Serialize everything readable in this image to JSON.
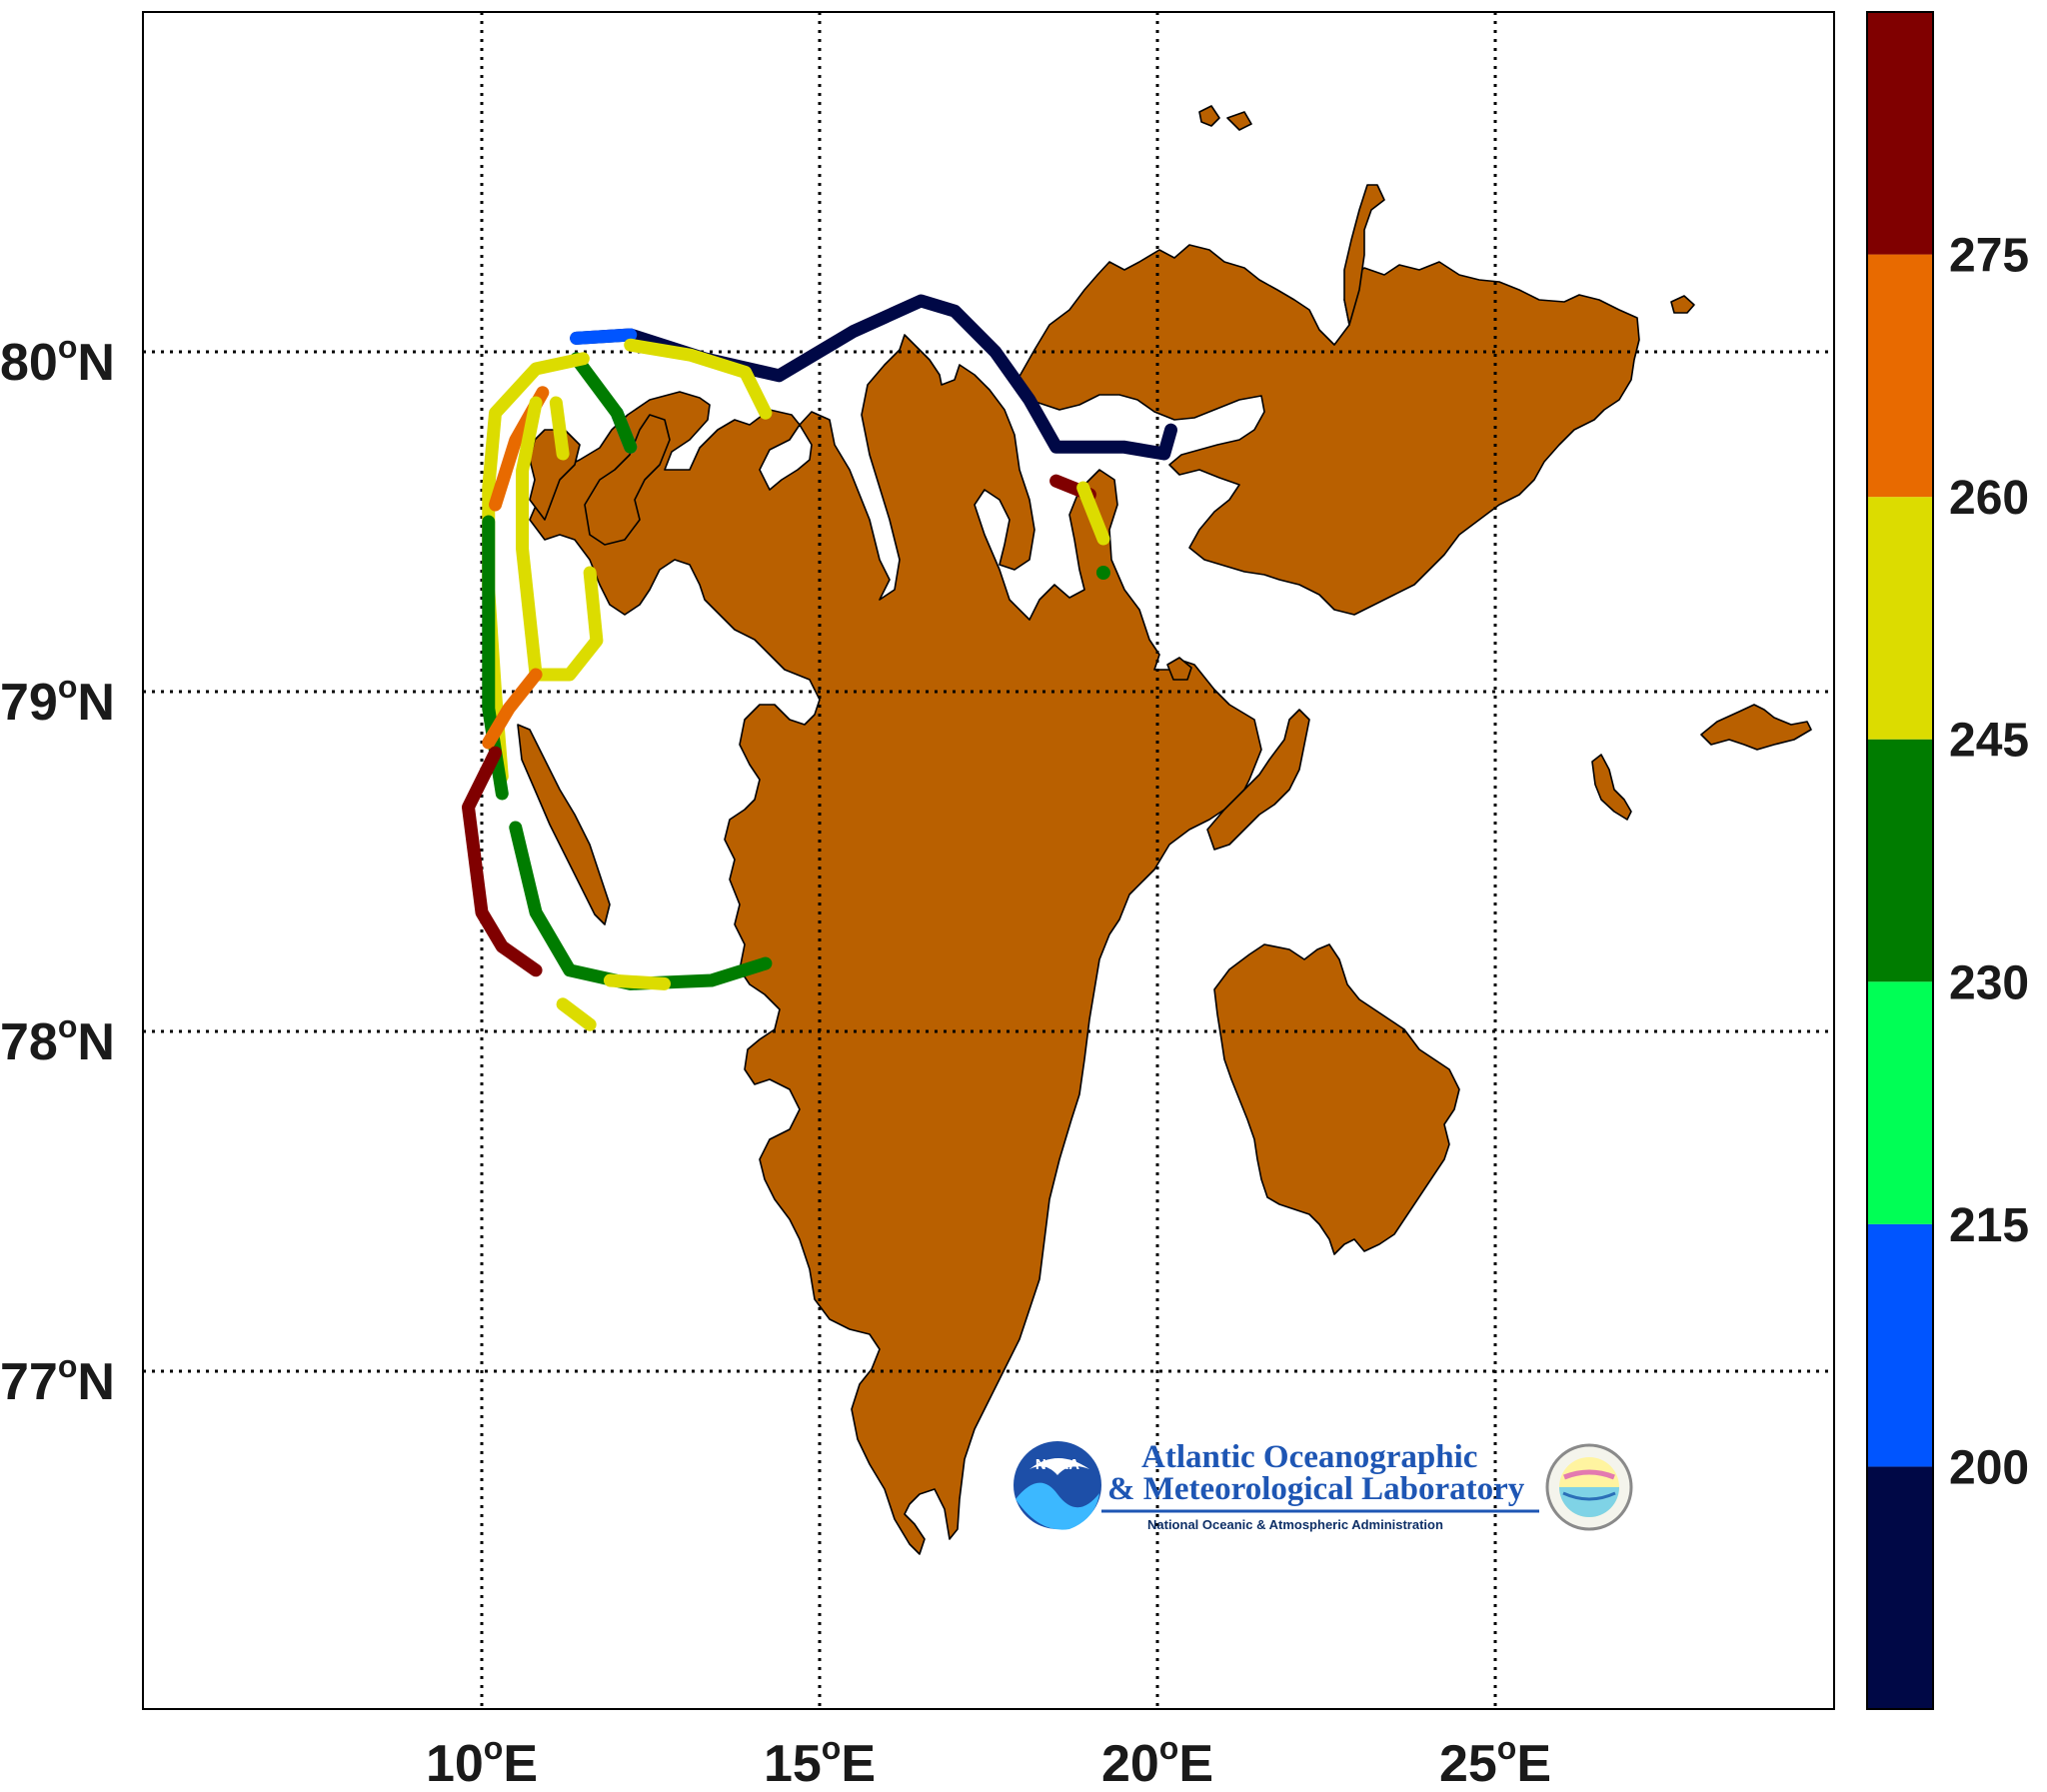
{
  "map": {
    "region": "Svalbard",
    "land_color": "#b96000",
    "ocean_color": "#ffffff",
    "grid": true,
    "lon_range": [
      5,
      30
    ],
    "lat_range": [
      76,
      81
    ]
  },
  "axes": {
    "lat_labels": [
      {
        "deg": "80",
        "sup": "o",
        "hemi": "N"
      },
      {
        "deg": "79",
        "sup": "o",
        "hemi": "N"
      },
      {
        "deg": "78",
        "sup": "o",
        "hemi": "N"
      },
      {
        "deg": "77",
        "sup": "o",
        "hemi": "N"
      }
    ],
    "lon_labels": [
      {
        "deg": "10",
        "sup": "o",
        "hemi": "E"
      },
      {
        "deg": "15",
        "sup": "o",
        "hemi": "E"
      },
      {
        "deg": "20",
        "sup": "o",
        "hemi": "E"
      },
      {
        "deg": "25",
        "sup": "o",
        "hemi": "E"
      }
    ]
  },
  "colorbar": {
    "min": 185,
    "max": 290,
    "labels": [
      "275",
      "260",
      "245",
      "230",
      "215",
      "200"
    ],
    "label_values": [
      275,
      260,
      245,
      230,
      215,
      200
    ],
    "bands": [
      {
        "from": 185,
        "to": 200,
        "color": "#000846"
      },
      {
        "from": 200,
        "to": 215,
        "color": "#0055ff"
      },
      {
        "from": 215,
        "to": 230,
        "color": "#00ff55"
      },
      {
        "from": 230,
        "to": 245,
        "color": "#007c00"
      },
      {
        "from": 245,
        "to": 260,
        "color": "#dcdc00"
      },
      {
        "from": 260,
        "to": 275,
        "color": "#e86a00"
      },
      {
        "from": 275,
        "to": 290,
        "color": "#800000"
      }
    ]
  },
  "logo": {
    "noaa_badge": "NOAA",
    "title_line1": "Atlantic Oceanographic",
    "title_line2": "& Meteorological Laboratory",
    "subtitle": "National Oceanic & Atmospheric Administration"
  },
  "chart_data": {
    "type": "scatter",
    "tracks": [
      {
        "v": 195,
        "points": [
          [
            11.4,
            80.04
          ],
          [
            12.2,
            80.05
          ],
          [
            13.3,
            79.98
          ],
          [
            14.4,
            79.93
          ],
          [
            15.5,
            80.06
          ],
          [
            16.5,
            80.15
          ],
          [
            17.0,
            80.12
          ],
          [
            17.6,
            80.0
          ],
          [
            18.1,
            79.86
          ],
          [
            18.5,
            79.72
          ],
          [
            19.5,
            79.72
          ],
          [
            20.1,
            79.7
          ],
          [
            20.2,
            79.77
          ]
        ]
      },
      {
        "v": 210,
        "points": [
          [
            11.4,
            80.04
          ],
          [
            12.2,
            80.05
          ]
        ]
      },
      {
        "v": 212,
        "points": [
          [
            12.0,
            79.82
          ],
          [
            12.2,
            79.72
          ]
        ]
      },
      {
        "v": 238,
        "points": [
          [
            11.4,
            79.98
          ],
          [
            12.0,
            79.82
          ],
          [
            12.2,
            79.72
          ]
        ]
      },
      {
        "v": 252,
        "points": [
          [
            12.2,
            80.02
          ],
          [
            13.1,
            79.99
          ],
          [
            13.9,
            79.94
          ],
          [
            14.2,
            79.82
          ]
        ]
      },
      {
        "v": 250,
        "points": [
          [
            11.5,
            79.98
          ],
          [
            10.8,
            79.95
          ],
          [
            10.2,
            79.82
          ],
          [
            10.1,
            79.6
          ],
          [
            10.1,
            79.3
          ],
          [
            10.2,
            79.0
          ],
          [
            10.3,
            78.75
          ]
        ]
      },
      {
        "v": 265,
        "points": [
          [
            10.9,
            79.88
          ],
          [
            10.5,
            79.74
          ],
          [
            10.2,
            79.55
          ]
        ]
      },
      {
        "v": 240,
        "points": [
          [
            10.1,
            79.5
          ],
          [
            10.1,
            79.2
          ],
          [
            10.1,
            78.95
          ],
          [
            10.3,
            78.7
          ]
        ]
      },
      {
        "v": 245,
        "points": [
          [
            10.8,
            79.85
          ],
          [
            10.6,
            79.65
          ],
          [
            10.6,
            79.42
          ],
          [
            10.8,
            79.05
          ],
          [
            11.3,
            79.05
          ],
          [
            11.7,
            79.15
          ],
          [
            11.6,
            79.35
          ]
        ]
      },
      {
        "v": 255,
        "points": [
          [
            11.1,
            79.85
          ],
          [
            11.2,
            79.7
          ]
        ]
      },
      {
        "v": 268,
        "points": [
          [
            10.1,
            78.85
          ],
          [
            10.4,
            78.95
          ],
          [
            10.8,
            79.05
          ]
        ]
      },
      {
        "v": 282,
        "points": [
          [
            10.2,
            78.82
          ],
          [
            9.8,
            78.66
          ],
          [
            10.0,
            78.35
          ],
          [
            10.3,
            78.25
          ],
          [
            10.8,
            78.18
          ]
        ]
      },
      {
        "v": 240,
        "points": [
          [
            10.5,
            78.6
          ],
          [
            10.8,
            78.35
          ],
          [
            11.3,
            78.18
          ],
          [
            12.2,
            78.14
          ],
          [
            13.4,
            78.15
          ],
          [
            14.2,
            78.2
          ]
        ]
      },
      {
        "v": 252,
        "points": [
          [
            11.9,
            78.15
          ],
          [
            12.7,
            78.14
          ]
        ]
      },
      {
        "v": 256,
        "points": [
          [
            11.2,
            78.08
          ],
          [
            11.6,
            78.02
          ]
        ]
      },
      {
        "v": 280,
        "points": [
          [
            18.5,
            79.62
          ],
          [
            19.0,
            79.58
          ]
        ]
      },
      {
        "v": 250,
        "points": [
          [
            18.9,
            79.6
          ],
          [
            19.2,
            79.45
          ]
        ]
      },
      {
        "v": 238,
        "points": [
          [
            19.2,
            79.35
          ]
        ]
      }
    ]
  }
}
